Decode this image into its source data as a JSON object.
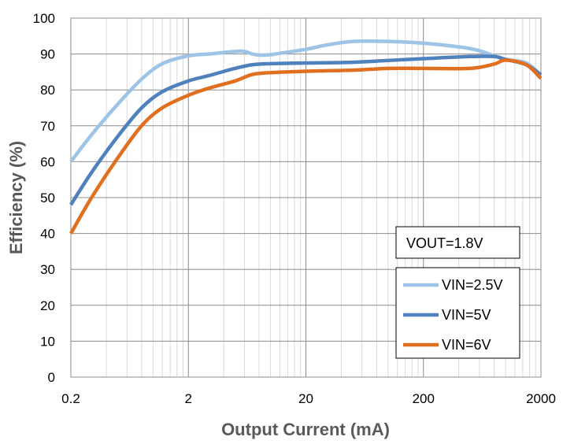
{
  "chart_data": {
    "type": "line",
    "xlabel": "Output Current (mA)",
    "ylabel": "Efficiency (%)",
    "x_scale": "log",
    "xlim": [
      0.2,
      2000
    ],
    "ylim": [
      0,
      100
    ],
    "x_ticks": [
      0.2,
      2,
      20,
      200,
      2000
    ],
    "x_tick_labels": [
      "0.2",
      "2",
      "20",
      "200",
      "2000"
    ],
    "y_ticks": [
      0,
      10,
      20,
      30,
      40,
      50,
      60,
      70,
      80,
      90,
      100
    ],
    "y_tick_labels": [
      "0",
      "10",
      "20",
      "30",
      "40",
      "50",
      "60",
      "70",
      "80",
      "90",
      "100"
    ],
    "grid": true,
    "annotation": "VOUT=1.8V",
    "legend_position": "bottom-right",
    "series": [
      {
        "name": "VIN=2.5V",
        "color": "#9DC3E6",
        "x": [
          0.2,
          0.3,
          0.5,
          0.8,
          1.2,
          2,
          3,
          5,
          6,
          7,
          8,
          10,
          12,
          20,
          30,
          50,
          100,
          200,
          500,
          800,
          1000,
          1500,
          2000
        ],
        "y": [
          60,
          67.5,
          76,
          83,
          87.3,
          89.5,
          90,
          90.7,
          90.7,
          90,
          89.7,
          89.8,
          90.2,
          91.3,
          92.5,
          93.5,
          93.5,
          93,
          91.5,
          89.5,
          88.5,
          87.5,
          84
        ]
      },
      {
        "name": "VIN=5V",
        "color": "#4F81BD",
        "x": [
          0.2,
          0.3,
          0.5,
          0.8,
          1.2,
          2,
          3,
          5,
          7,
          10,
          20,
          50,
          100,
          200,
          500,
          800,
          1000,
          1500,
          2000
        ],
        "y": [
          48,
          57,
          67,
          75,
          79.5,
          82.5,
          84,
          86,
          87,
          87.3,
          87.5,
          87.7,
          88.2,
          88.7,
          89.3,
          89.3,
          88.5,
          87,
          84.2
        ]
      },
      {
        "name": "VIN=6V",
        "color": "#E07020",
        "x": [
          0.2,
          0.3,
          0.5,
          0.8,
          1.2,
          2,
          3,
          5,
          7,
          10,
          20,
          50,
          100,
          200,
          500,
          800,
          1000,
          1500,
          2000
        ],
        "y": [
          40,
          50,
          61,
          70,
          75,
          78.5,
          80.5,
          82.5,
          84.3,
          84.8,
          85.2,
          85.5,
          86,
          86,
          86,
          87.2,
          88.3,
          87,
          83.2
        ]
      }
    ]
  }
}
